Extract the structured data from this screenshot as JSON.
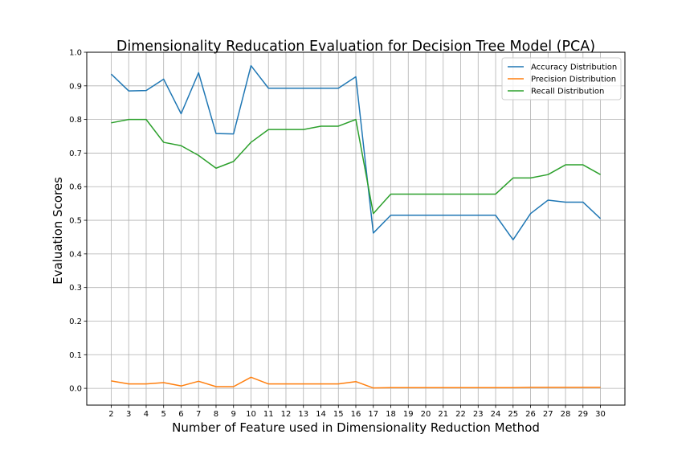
{
  "chart_data": {
    "type": "line",
    "title": "Dimensionality Reducation Evaluation for Decision Tree Model (PCA)",
    "xlabel": "Number of Feature used in Dimensionality Reduction Method",
    "ylabel": "Evaluation Scores",
    "x": [
      2,
      3,
      4,
      5,
      6,
      7,
      8,
      9,
      10,
      11,
      12,
      13,
      14,
      15,
      16,
      17,
      18,
      19,
      20,
      21,
      22,
      23,
      24,
      25,
      26,
      27,
      28,
      29,
      30
    ],
    "xlim": [
      0.6,
      31.4
    ],
    "ylim": [
      -0.05,
      1.0
    ],
    "yticks": [
      0.0,
      0.1,
      0.2,
      0.3,
      0.4,
      0.5,
      0.6,
      0.7,
      0.8,
      0.9,
      1.0
    ],
    "ytick_labels": [
      "0.0",
      "0.1",
      "0.2",
      "0.3",
      "0.4",
      "0.5",
      "0.6",
      "0.7",
      "0.8",
      "0.9",
      "1.0"
    ],
    "grid": true,
    "legend_position": "top-right",
    "series": [
      {
        "name": "Accuracy Distribution",
        "color": "#1f77b4",
        "values": [
          0.935,
          0.885,
          0.886,
          0.92,
          0.817,
          0.939,
          0.758,
          0.757,
          0.96,
          0.893,
          0.893,
          0.893,
          0.893,
          0.893,
          0.927,
          0.462,
          0.515,
          0.515,
          0.515,
          0.515,
          0.515,
          0.515,
          0.515,
          0.442,
          0.52,
          0.56,
          0.554,
          0.554,
          0.505
        ]
      },
      {
        "name": "Precision Distribution",
        "color": "#ff7f0e",
        "values": [
          0.022,
          0.013,
          0.013,
          0.017,
          0.007,
          0.021,
          0.005,
          0.005,
          0.033,
          0.013,
          0.013,
          0.013,
          0.013,
          0.013,
          0.02,
          0.001,
          0.002,
          0.002,
          0.002,
          0.002,
          0.002,
          0.002,
          0.002,
          0.002,
          0.003,
          0.003,
          0.003,
          0.003,
          0.003
        ]
      },
      {
        "name": "Recall Distribution",
        "color": "#2ca02c",
        "values": [
          0.79,
          0.8,
          0.8,
          0.732,
          0.722,
          0.693,
          0.655,
          0.675,
          0.732,
          0.77,
          0.77,
          0.77,
          0.78,
          0.78,
          0.8,
          0.52,
          0.578,
          0.578,
          0.578,
          0.578,
          0.578,
          0.578,
          0.578,
          0.626,
          0.626,
          0.636,
          0.665,
          0.665,
          0.636
        ]
      }
    ]
  }
}
